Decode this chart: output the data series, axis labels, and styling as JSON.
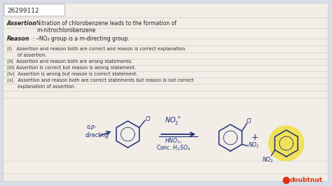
{
  "bg_color": "#d8dde8",
  "content_bg": "#f2ede6",
  "id_box_color": "#ffffff",
  "id_box_border": "#aaaaaa",
  "id_box_text": "26299112",
  "assertion_label": "Assertion",
  "assertion_text_line1": "Nitration of chlorobenzene leads to the formation of",
  "assertion_text_line2": "m-nitrochlorobenzene",
  "reason_label": "Reason",
  "reason_text": "–NO₂ group is a m-directing group.",
  "option1a": "(i)   Assertion and reason both are correct and reason is correct explanation",
  "option1b": "       of assertion.",
  "option2": "(ii)  Assertion and reason both are wrong statements.",
  "option3": "(iii) Assertion is correct but reason is wrong statement.",
  "option4": "(iv)  Assertion is wrong but reason is correct statement.",
  "option5a": "(v)   Assertion and reason both are correct statements but reason is not correct",
  "option5b": "       explanation of assertion.",
  "dark_text": "#2a2a2a",
  "blue": "#1a2f7a",
  "yellow_circle": "#f0e040",
  "red_logo": "#e03010",
  "line_gray": "#c8c8c8"
}
